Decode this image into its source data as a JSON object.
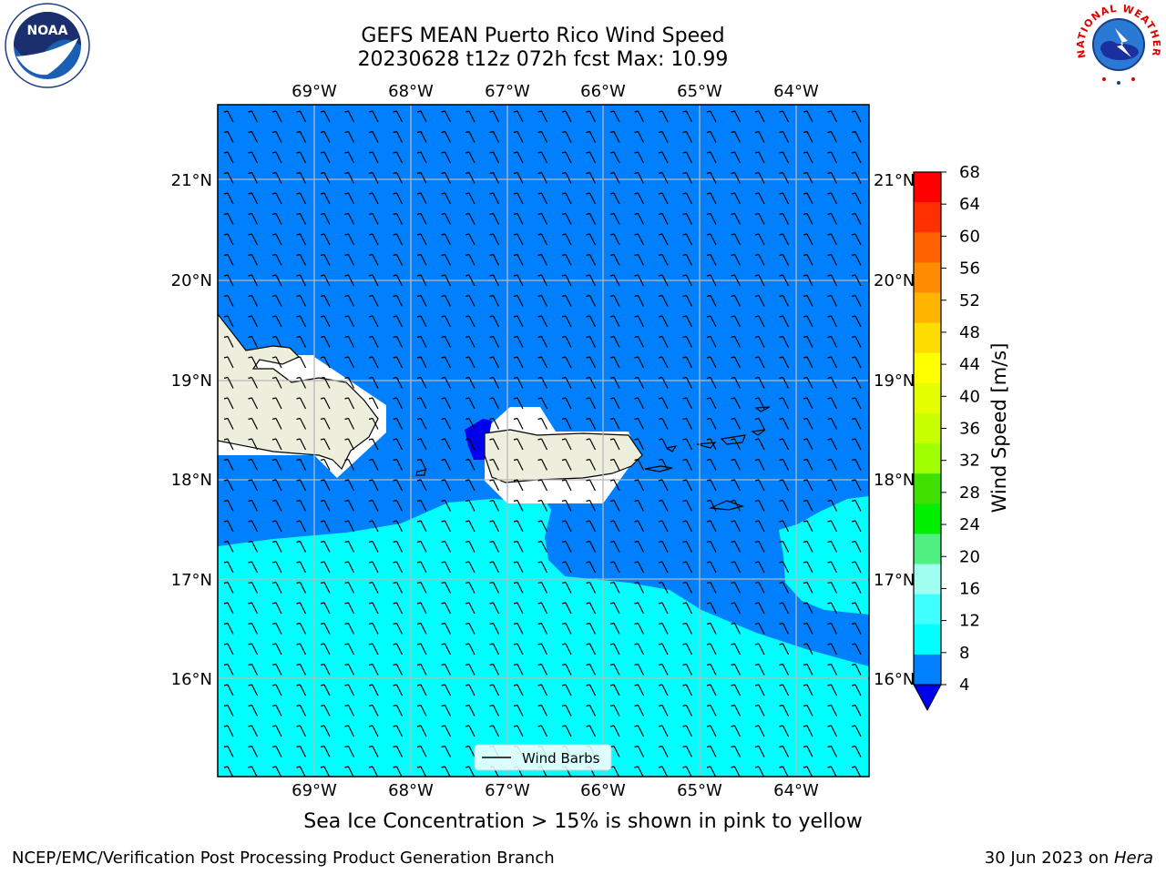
{
  "title": {
    "line1": "GEFS MEAN Puerto Rico Wind Speed",
    "line2": "20230628 t12z 072h fcst   Max: 10.99"
  },
  "axes": {
    "lon_labels": [
      "69°W",
      "68°W",
      "67°W",
      "66°W",
      "65°W",
      "64°W"
    ],
    "lat_labels": [
      "21°N",
      "20°N",
      "19°N",
      "18°N",
      "17°N",
      "16°N"
    ]
  },
  "legend": {
    "label": "Wind Barbs"
  },
  "colorbar": {
    "title": "Wind Speed [m/s]",
    "ticks": [
      "68",
      "64",
      "60",
      "56",
      "52",
      "48",
      "44",
      "40",
      "36",
      "32",
      "28",
      "24",
      "20",
      "16",
      "12",
      "8",
      "4"
    ],
    "colors": [
      "#ff0000",
      "#ff3000",
      "#ff6000",
      "#ff8c00",
      "#ffb400",
      "#ffdc00",
      "#ffff00",
      "#e6ff00",
      "#c8ff00",
      "#a0ff00",
      "#40e000",
      "#00ee00",
      "#50f080",
      "#a0fff0",
      "#40ffff",
      "#00ffff",
      "#0080ff"
    ],
    "under_color": "#0000ee"
  },
  "colors": {
    "ocean_low": "#0080ff",
    "ocean_mid": "#00ffff",
    "land": "#eeeedd",
    "low_spot": "#0000ee"
  },
  "footnote": "Sea Ice Concentration > 15% is shown in pink to yellow",
  "credit_left": "NCEP/EMC/Verification Post Processing Product Generation Branch",
  "credit_right_date": "30 Jun 2023 on ",
  "credit_right_host": "Hera",
  "logos": {
    "noaa_text": "NOAA",
    "nws_text": "NATIONAL WEATHER SERVICE"
  }
}
